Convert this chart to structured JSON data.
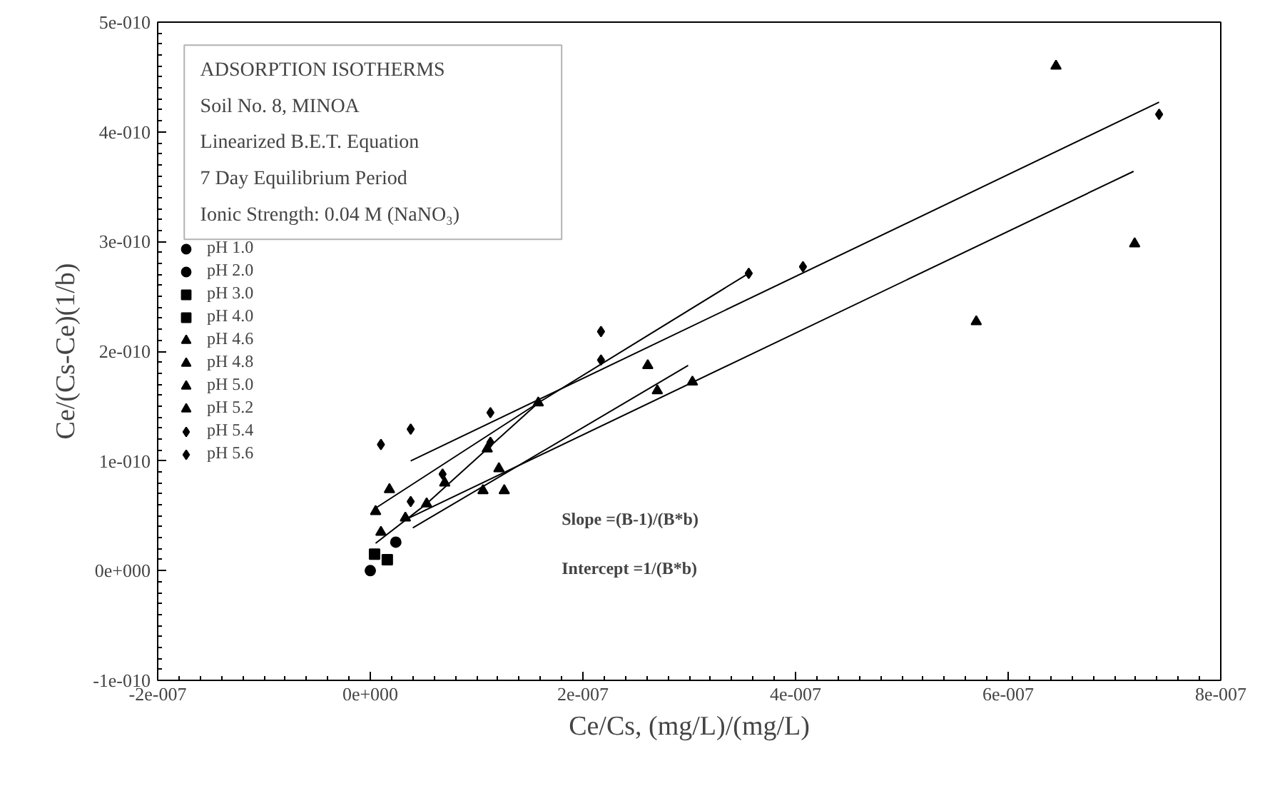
{
  "chart_data": {
    "type": "scatter",
    "xlabel": "Ce/Cs, (mg/L)/(mg/L)",
    "ylabel": "Ce/(Cs-Ce)(1/b)",
    "annotations": [
      {
        "text": "ADSORPTION ISOTHERMS"
      },
      {
        "text": "Soil No. 8, MINOA"
      },
      {
        "text": "Linearized B.E.T. Equation"
      },
      {
        "text": "7 Day Equilibrium Period"
      },
      {
        "text": "Ionic Strength: 0.04 M (NaNO₃)"
      },
      {
        "text": "Slope =(B-1)/(B*b)"
      },
      {
        "text": "Intercept =1/(B*b)"
      }
    ],
    "xlim": [
      -2e-07,
      8e-07
    ],
    "ylim": [
      -1e-10,
      5e-10
    ],
    "xticks": [
      {
        "value": -2e-07,
        "label": "-2e-007"
      },
      {
        "value": 0,
        "label": "0e+000"
      },
      {
        "value": 2e-07,
        "label": "2e-007"
      },
      {
        "value": 4e-07,
        "label": "4e-007"
      },
      {
        "value": 6e-07,
        "label": "6e-007"
      },
      {
        "value": 8e-07,
        "label": "8e-007"
      }
    ],
    "yticks": [
      {
        "value": -1e-10,
        "label": "-1e-010"
      },
      {
        "value": 0,
        "label": "0e+000"
      },
      {
        "value": 1e-10,
        "label": "1e-010"
      },
      {
        "value": 2e-10,
        "label": "2e-010"
      },
      {
        "value": 3e-10,
        "label": "3e-010"
      },
      {
        "value": 4e-10,
        "label": "4e-010"
      },
      {
        "value": 5e-10,
        "label": "5e-010"
      }
    ],
    "grid": false,
    "legend": "left",
    "series": [
      {
        "name": "pH 1.0",
        "color": "#000000",
        "marker": "circle",
        "x": [
          0
        ],
        "values": [
          0
        ]
      },
      {
        "name": "pH 2.0",
        "color": "#000000",
        "marker": "circle",
        "x": [
          2.4e-08
        ],
        "values": [
          2.6e-11
        ]
      },
      {
        "name": "pH 3.0",
        "color": "#000000",
        "marker": "square",
        "x": [
          4e-09
        ],
        "values": [
          1.5e-11
        ]
      },
      {
        "name": "pH 4.0",
        "color": "#000000",
        "marker": "square",
        "x": [
          1.6e-08
        ],
        "values": [
          1e-11
        ]
      },
      {
        "name": "pH 4.6",
        "color": "#000000",
        "marker": "triangle",
        "x": [
          1.06e-07,
          1.21e-07,
          1.26e-07
        ],
        "values": [
          7.3e-11,
          9.3e-11,
          7.3e-11
        ]
      },
      {
        "name": "pH 4.8",
        "color": "#000000",
        "marker": "triangle",
        "x": [
          2.61e-07,
          2.7e-07,
          3.03e-07
        ],
        "values": [
          1.87e-10,
          1.64e-10,
          1.72e-10
        ]
      },
      {
        "name": "pH 5.0",
        "color": "#000000",
        "marker": "triangle",
        "x": [
          5e-09,
          1e-08,
          1.58e-07,
          5.7e-07,
          6.45e-07,
          7.19e-07
        ],
        "values": [
          5.4e-11,
          3.5e-11,
          1.53e-10,
          2.27e-10,
          4.6e-10,
          2.98e-10
        ]
      },
      {
        "name": "pH 5.2",
        "color": "#000000",
        "marker": "triangle",
        "x": [
          1.8e-08,
          3.3e-08,
          5.3e-08,
          7e-08,
          1.1e-07
        ],
        "values": [
          7.4e-11,
          4.8e-11,
          6.1e-11,
          8e-11,
          1.11e-10
        ]
      },
      {
        "name": "pH 5.4",
        "color": "#000000",
        "marker": "diamond",
        "x": [
          1e-08,
          3.8e-08,
          6.8e-08,
          1.13e-07,
          2.17e-07,
          3.56e-07
        ],
        "values": [
          1.15e-10,
          1.29e-10,
          8.8e-11,
          1.17e-10,
          1.92e-10,
          2.71e-10
        ]
      },
      {
        "name": "pH 5.6",
        "color": "#000000",
        "marker": "diamond",
        "x": [
          3.8e-08,
          1.13e-07,
          2.17e-07,
          4.07e-07,
          7.42e-07
        ],
        "values": [
          6.3e-11,
          1.44e-10,
          2.18e-10,
          2.77e-10,
          4.16e-10
        ]
      },
      {
        "type": "line",
        "color": "#000000",
        "x": [
          3.8e-08,
          7.42e-07
        ],
        "values": [
          1e-10,
          4.27e-10
        ]
      },
      {
        "type": "line",
        "color": "#000000",
        "x": [
          5e-09,
          1.58e-07,
          3.56e-07
        ],
        "values": [
          5.7e-11,
          1.53e-10,
          2.71e-10
        ]
      },
      {
        "type": "line",
        "color": "#000000",
        "x": [
          5e-09,
          5.3e-08,
          1.1e-07,
          1.58e-07
        ],
        "values": [
          2.5e-11,
          6.1e-11,
          1.11e-10,
          1.53e-10
        ]
      },
      {
        "type": "line",
        "color": "#000000",
        "x": [
          4e-08,
          2.99e-07
        ],
        "values": [
          3.9e-11,
          1.87e-10
        ]
      },
      {
        "type": "line",
        "color": "#000000",
        "x": [
          3e-08,
          7.18e-07
        ],
        "values": [
          4.5e-11,
          3.64e-10
        ]
      }
    ]
  }
}
